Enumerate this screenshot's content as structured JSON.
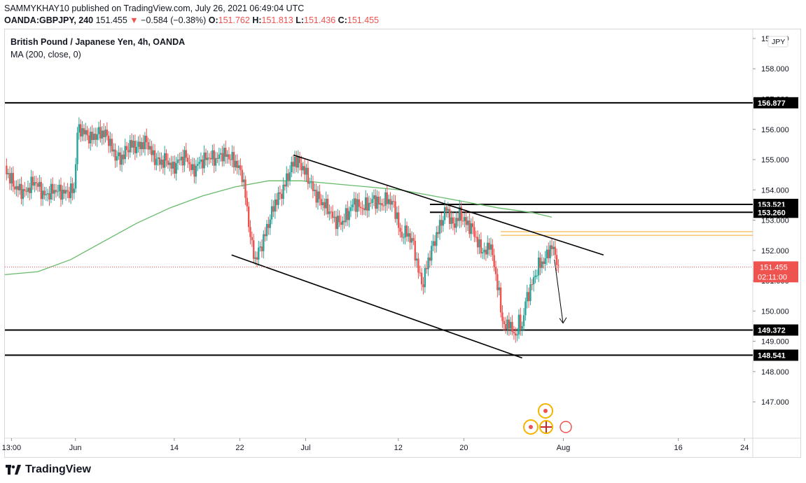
{
  "header": {
    "line1": "SAMMYKHAY10 published on TradingView.com, July 26, 2021 06:49:04 UTC",
    "symbol": "OANDA:GBPJPY, 240",
    "price": "151.455",
    "arrow": "▼",
    "change": "−0.584 (−0.38%)",
    "o_label": "O:",
    "o_value": "151.762",
    "h_label": "H:",
    "h_value": "151.813",
    "l_label": "L:",
    "l_value": "151.436",
    "c_label": "C:",
    "c_value": "151.455"
  },
  "legend": {
    "title": "British Pound / Japanese Yen, 4h, OANDA",
    "indicator": "MA (200, close, 0)"
  },
  "footer": {
    "brand": "TradingView"
  },
  "colors": {
    "up": "#26a69a",
    "down": "#ef5350",
    "ma": "#66bb6a",
    "level": "#000000",
    "orange": "#f5a623",
    "price_label": "#ef5350"
  },
  "chart_data": {
    "type": "candlestick",
    "currency_label": "JPY",
    "ylim": [
      145.8,
      159.3
    ],
    "y_ticks": [
      "147.000",
      "148.000",
      "149.000",
      "150.000",
      "151.000",
      "152.000",
      "153.000",
      "154.000",
      "155.000",
      "156.000",
      "157.000",
      "158.000",
      "159.000"
    ],
    "x_ticks": [
      {
        "label": "13:00",
        "t": 2.0
      },
      {
        "label": "Jun",
        "t": 21.4
      },
      {
        "label": "14",
        "t": 51.4
      },
      {
        "label": "22",
        "t": 71.3
      },
      {
        "label": "Jul",
        "t": 91.3
      },
      {
        "label": "12",
        "t": 119.4
      },
      {
        "label": "20",
        "t": 139.3
      },
      {
        "label": "Aug",
        "t": 169.5
      },
      {
        "label": "16",
        "t": 204.4
      },
      {
        "label": "24",
        "t": 224.5
      }
    ],
    "horizontal_levels": [
      {
        "value": 156.877,
        "label": "156.877",
        "extent": "full"
      },
      {
        "value": 153.521,
        "label": "153.521",
        "extent": "partial"
      },
      {
        "value": 153.26,
        "label": "153.260",
        "extent": "partial"
      },
      {
        "value": 149.372,
        "label": "149.372",
        "extent": "full"
      },
      {
        "value": 148.541,
        "label": "148.541",
        "extent": "full"
      }
    ],
    "zone": {
      "top": 152.62,
      "bottom": 152.5
    },
    "current_price": {
      "value": 151.455,
      "label": "151.455",
      "countdown": "02:11:00"
    },
    "channel": {
      "upper": [
        [
          87.6,
          155.15
        ],
        [
          181.7,
          151.85
        ]
      ],
      "lower": [
        [
          68.8,
          151.85
        ],
        [
          157.0,
          148.45
        ]
      ]
    },
    "projection_arrow": {
      "from": [
        166.8,
        151.7
      ],
      "to": [
        169.4,
        149.6
      ]
    },
    "closes": [
      [
        0,
        154.7
      ],
      [
        3,
        154.1
      ],
      [
        6,
        153.9
      ],
      [
        9,
        154.3
      ],
      [
        12,
        153.8
      ],
      [
        15,
        154.0
      ],
      [
        18,
        153.9
      ],
      [
        21,
        154.0
      ],
      [
        22,
        155.9
      ],
      [
        23,
        156.0
      ],
      [
        26,
        155.7
      ],
      [
        29,
        155.9
      ],
      [
        31,
        155.8
      ],
      [
        33,
        155.2
      ],
      [
        35,
        155.0
      ],
      [
        38,
        155.5
      ],
      [
        40,
        155.4
      ],
      [
        43,
        155.6
      ],
      [
        45,
        155.1
      ],
      [
        47,
        154.9
      ],
      [
        49,
        155.0
      ],
      [
        51,
        154.7
      ],
      [
        53,
        155.0
      ],
      [
        55,
        155.1
      ],
      [
        57,
        154.6
      ],
      [
        59,
        154.9
      ],
      [
        62,
        155.1
      ],
      [
        64,
        155.0
      ],
      [
        66,
        155.2
      ],
      [
        68,
        155.1
      ],
      [
        70,
        154.9
      ],
      [
        72,
        154.5
      ],
      [
        73,
        153.8
      ],
      [
        74,
        152.9
      ],
      [
        75,
        152.1
      ],
      [
        76,
        151.7
      ],
      [
        78,
        152.2
      ],
      [
        80,
        152.9
      ],
      [
        82,
        153.6
      ],
      [
        84,
        153.9
      ],
      [
        86,
        154.5
      ],
      [
        88,
        155.0
      ],
      [
        90,
        154.8
      ],
      [
        92,
        154.4
      ],
      [
        94,
        153.9
      ],
      [
        96,
        153.6
      ],
      [
        98,
        153.4
      ],
      [
        100,
        153.0
      ],
      [
        102,
        152.9
      ],
      [
        104,
        153.2
      ],
      [
        106,
        153.6
      ],
      [
        108,
        153.4
      ],
      [
        110,
        153.5
      ],
      [
        112,
        153.7
      ],
      [
        114,
        153.5
      ],
      [
        116,
        153.7
      ],
      [
        118,
        153.5
      ],
      [
        119,
        153.1
      ],
      [
        120,
        152.5
      ],
      [
        122,
        152.6
      ],
      [
        124,
        152.2
      ],
      [
        125,
        151.6
      ],
      [
        126,
        151.1
      ],
      [
        127,
        150.9
      ],
      [
        128,
        151.5
      ],
      [
        130,
        152.2
      ],
      [
        132,
        152.8
      ],
      [
        134,
        153.4
      ],
      [
        136,
        152.8
      ],
      [
        138,
        153.2
      ],
      [
        140,
        152.9
      ],
      [
        142,
        152.7
      ],
      [
        144,
        152.1
      ],
      [
        146,
        151.9
      ],
      [
        147,
        152.3
      ],
      [
        148,
        151.8
      ],
      [
        149,
        151.2
      ],
      [
        150,
        150.5
      ],
      [
        151,
        149.7
      ],
      [
        152,
        149.4
      ],
      [
        153,
        149.7
      ],
      [
        154,
        149.3
      ],
      [
        155,
        149.2
      ],
      [
        156,
        149.6
      ],
      [
        157,
        149.5
      ],
      [
        158,
        150.3
      ],
      [
        160,
        150.9
      ],
      [
        162,
        151.5
      ],
      [
        164,
        151.7
      ],
      [
        165,
        152.0
      ],
      [
        166,
        152.1
      ],
      [
        167,
        151.9
      ],
      [
        168,
        151.5
      ]
    ],
    "ma200": [
      [
        0,
        151.2
      ],
      [
        10,
        151.3
      ],
      [
        20,
        151.7
      ],
      [
        30,
        152.3
      ],
      [
        40,
        152.9
      ],
      [
        50,
        153.4
      ],
      [
        60,
        153.8
      ],
      [
        70,
        154.1
      ],
      [
        80,
        154.3
      ],
      [
        90,
        154.3
      ],
      [
        100,
        154.2
      ],
      [
        110,
        154.1
      ],
      [
        120,
        154.0
      ],
      [
        130,
        153.8
      ],
      [
        140,
        153.6
      ],
      [
        150,
        153.4
      ],
      [
        160,
        153.25
      ],
      [
        166,
        153.1
      ]
    ]
  }
}
